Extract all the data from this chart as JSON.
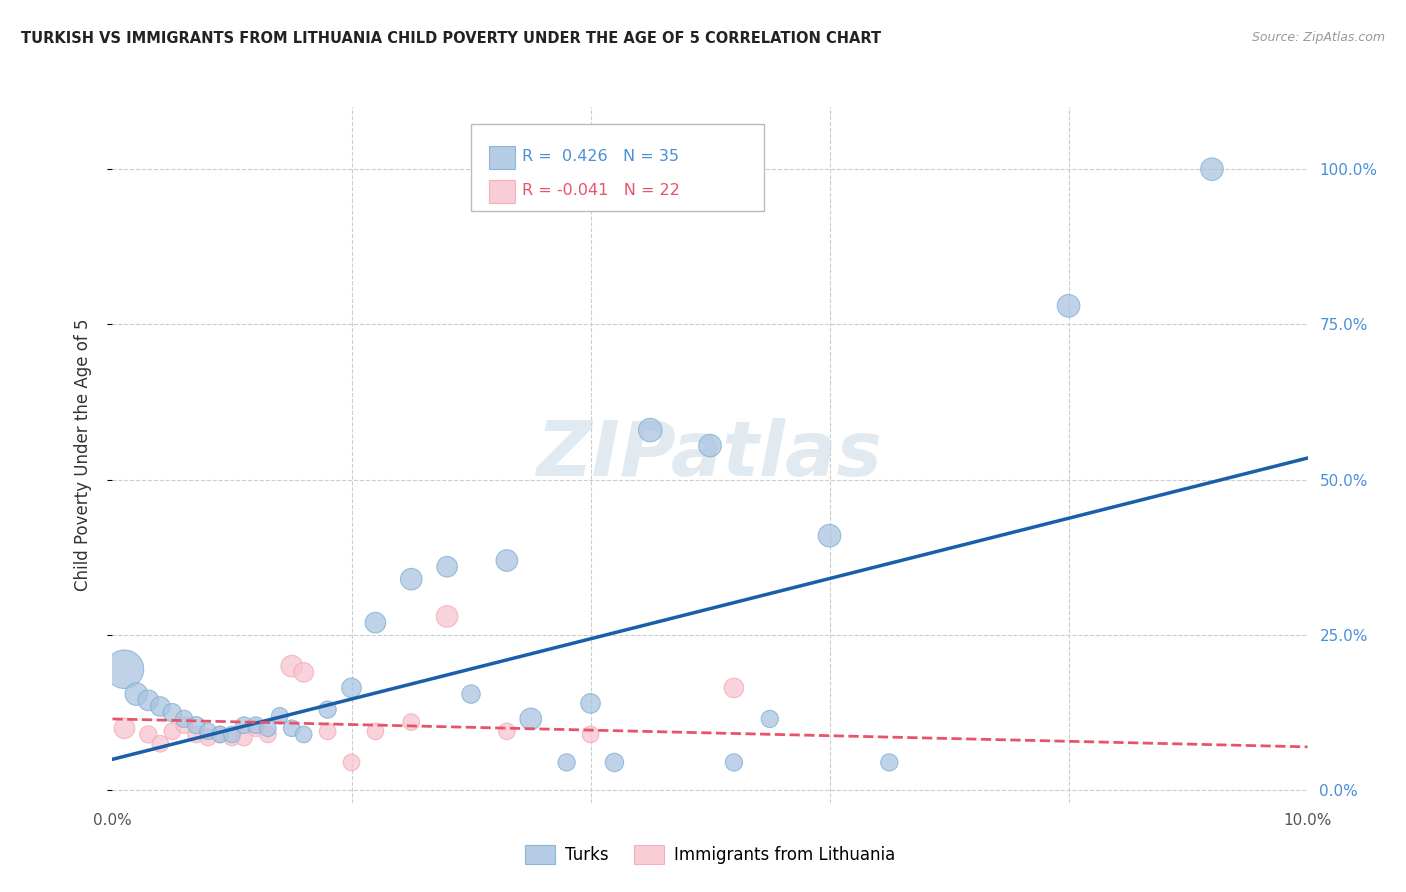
{
  "title": "TURKISH VS IMMIGRANTS FROM LITHUANIA CHILD POVERTY UNDER THE AGE OF 5 CORRELATION CHART",
  "source": "Source: ZipAtlas.com",
  "ylabel": "Child Poverty Under the Age of 5",
  "xlim": [
    0.0,
    0.1
  ],
  "ylim": [
    -0.02,
    1.1
  ],
  "ytick_labels": [
    "0.0%",
    "25.0%",
    "50.0%",
    "75.0%",
    "100.0%"
  ],
  "ytick_values": [
    0.0,
    0.25,
    0.5,
    0.75,
    1.0
  ],
  "xtick_labels": [
    "0.0%",
    "",
    "",
    "",
    "",
    "",
    "",
    "",
    "",
    "",
    "10.0%"
  ],
  "xtick_values": [
    0.0,
    0.01,
    0.02,
    0.03,
    0.04,
    0.05,
    0.06,
    0.07,
    0.08,
    0.09,
    0.1
  ],
  "turks_color": "#aac4e0",
  "turks_edge_color": "#7bafd4",
  "lithuania_color": "#f7c5cf",
  "lithuania_edge_color": "#f4a7b5",
  "turks_line_color": "#1a5fa8",
  "lithuania_line_color": "#e8536a",
  "r_turks": 0.426,
  "n_turks": 35,
  "r_lithuania": -0.041,
  "n_lithuania": 22,
  "turks_x": [
    0.001,
    0.002,
    0.003,
    0.004,
    0.005,
    0.006,
    0.007,
    0.008,
    0.009,
    0.01,
    0.011,
    0.012,
    0.013,
    0.014,
    0.015,
    0.016,
    0.018,
    0.02,
    0.022,
    0.025,
    0.028,
    0.03,
    0.033,
    0.035,
    0.038,
    0.04,
    0.042,
    0.045,
    0.05,
    0.052,
    0.055,
    0.06,
    0.065,
    0.08,
    0.092
  ],
  "turks_y": [
    0.195,
    0.155,
    0.145,
    0.135,
    0.125,
    0.115,
    0.105,
    0.095,
    0.09,
    0.09,
    0.105,
    0.105,
    0.1,
    0.12,
    0.1,
    0.09,
    0.13,
    0.165,
    0.27,
    0.34,
    0.36,
    0.155,
    0.37,
    0.115,
    0.045,
    0.14,
    0.045,
    0.58,
    0.555,
    0.045,
    0.115,
    0.41,
    0.045,
    0.78,
    1.0
  ],
  "turks_size": [
    350,
    120,
    100,
    90,
    80,
    70,
    70,
    65,
    65,
    65,
    65,
    65,
    65,
    65,
    65,
    65,
    70,
    90,
    100,
    110,
    100,
    80,
    110,
    110,
    70,
    90,
    80,
    130,
    120,
    70,
    70,
    120,
    70,
    120,
    120
  ],
  "lithuania_x": [
    0.001,
    0.003,
    0.004,
    0.005,
    0.006,
    0.007,
    0.008,
    0.009,
    0.01,
    0.011,
    0.012,
    0.013,
    0.015,
    0.016,
    0.018,
    0.02,
    0.022,
    0.025,
    0.028,
    0.033,
    0.04,
    0.052
  ],
  "lithuania_y": [
    0.1,
    0.09,
    0.075,
    0.095,
    0.105,
    0.09,
    0.085,
    0.09,
    0.085,
    0.085,
    0.1,
    0.09,
    0.2,
    0.19,
    0.095,
    0.045,
    0.095,
    0.11,
    0.28,
    0.095,
    0.09,
    0.165
  ],
  "lithuania_size": [
    100,
    70,
    65,
    65,
    65,
    65,
    65,
    65,
    65,
    65,
    65,
    65,
    110,
    90,
    65,
    65,
    65,
    65,
    110,
    65,
    65,
    90
  ],
  "turks_line_x": [
    0.0,
    0.1
  ],
  "turks_line_y": [
    0.05,
    0.535
  ],
  "lith_line_x": [
    0.0,
    0.1
  ],
  "lith_line_y": [
    0.115,
    0.07
  ],
  "watermark_text": "ZIPatlas",
  "watermark_fontsize": 55,
  "watermark_color": "#d0dde8",
  "watermark_alpha": 0.6
}
